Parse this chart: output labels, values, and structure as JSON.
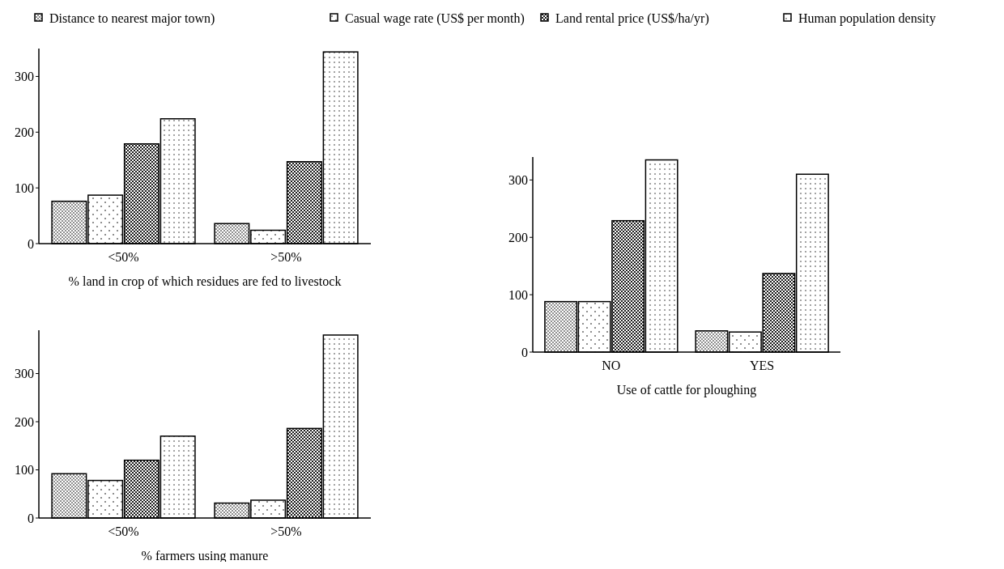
{
  "chart_data": [
    {
      "type": "bar",
      "xlabel": "% land in crop of which residues are fed to livestock",
      "categories": [
        "<50%",
        ">50%"
      ],
      "ylim": [
        0,
        350
      ],
      "yticks": [
        0,
        100,
        200,
        300
      ],
      "legend": "top",
      "series": [
        {
          "name": "Distance to nearest major town)",
          "color": "#000000",
          "values": [
            76,
            36
          ]
        },
        {
          "name": "Casual wage rate (US$ per month)",
          "color": "#000000",
          "values": [
            87,
            24
          ]
        },
        {
          "name": "Land rental price (US$/ha/yr)",
          "color": "#000000",
          "values": [
            179,
            147
          ]
        },
        {
          "name": "Human population density",
          "color": "#000000",
          "values": [
            224,
            344
          ]
        }
      ]
    },
    {
      "type": "bar",
      "xlabel": "Use of cattle for ploughing",
      "categories": [
        "NO",
        "YES"
      ],
      "ylim": [
        0,
        340
      ],
      "yticks": [
        0,
        100,
        200,
        300
      ],
      "series": [
        {
          "color": "#000000",
          "values": [
            88,
            37
          ]
        },
        {
          "color": "#000000",
          "values": [
            88,
            35
          ]
        },
        {
          "color": "#000000",
          "values": [
            229,
            137
          ]
        },
        {
          "color": "#000000",
          "values": [
            335,
            310
          ]
        }
      ]
    },
    {
      "type": "bar",
      "xlabel": "% farmers using manure",
      "categories": [
        "<50%",
        ">50%"
      ],
      "ylim": [
        0,
        390
      ],
      "yticks": [
        0,
        100,
        200,
        300
      ],
      "series": [
        {
          "color": "#000000",
          "values": [
            92,
            31
          ]
        },
        {
          "color": "#000000",
          "values": [
            78,
            37
          ]
        },
        {
          "color": "#000000",
          "values": [
            120,
            186
          ]
        },
        {
          "color": "#000000",
          "values": [
            170,
            380
          ]
        }
      ]
    }
  ]
}
